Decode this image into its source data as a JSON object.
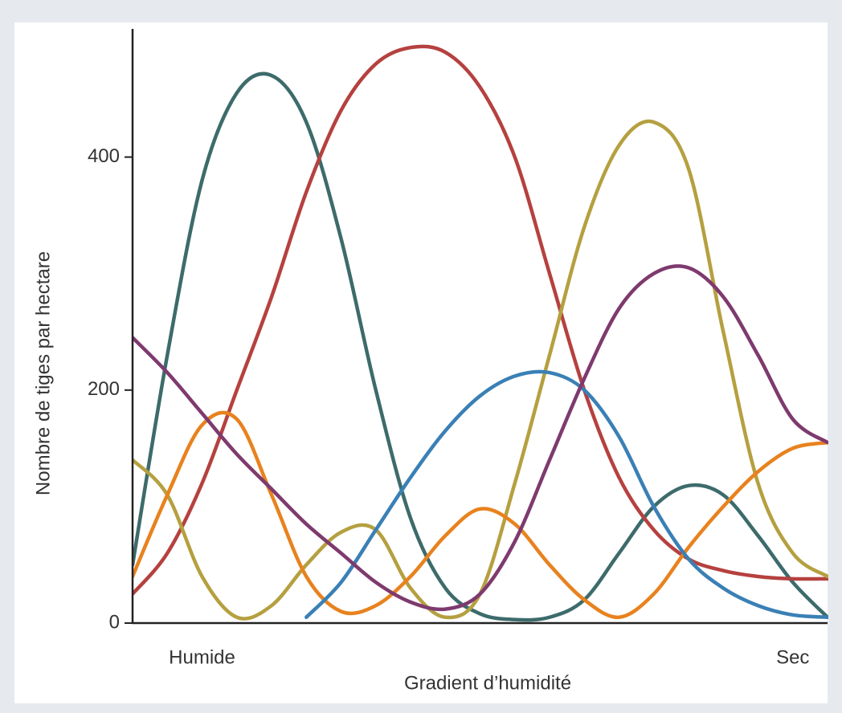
{
  "chart_data": {
    "type": "line",
    "xlabel": "Gradient d’humidité",
    "ylabel": "Nombre de tiges par hectare",
    "categories": [
      null,
      null,
      "Humide",
      null,
      null,
      null,
      null,
      null,
      null,
      null,
      null,
      null,
      null,
      null,
      null,
      null,
      null,
      null,
      null,
      "Sec",
      null
    ],
    "ylim": [
      0,
      510
    ],
    "yticks": [
      0,
      200,
      400
    ],
    "series": [
      {
        "color": "#3d6b6b",
        "values": [
          50,
          230,
          380,
          455,
          470,
          430,
          330,
          200,
          90,
          30,
          8,
          3,
          5,
          20,
          60,
          100,
          118,
          110,
          75,
          35,
          5
        ]
      },
      {
        "color": "#b5413f",
        "values": [
          25,
          60,
          120,
          200,
          280,
          370,
          440,
          480,
          494,
          490,
          460,
          400,
          300,
          200,
          125,
          80,
          55,
          45,
          40,
          38,
          38
        ]
      },
      {
        "color": "#b5a040",
        "values": [
          140,
          110,
          40,
          5,
          15,
          50,
          78,
          80,
          30,
          5,
          25,
          120,
          230,
          340,
          410,
          430,
          390,
          250,
          120,
          60,
          40
        ]
      },
      {
        "color": "#e8821e",
        "values": [
          40,
          110,
          170,
          175,
          110,
          40,
          10,
          15,
          40,
          75,
          98,
          85,
          50,
          20,
          5,
          25,
          65,
          100,
          130,
          150,
          155
        ]
      },
      {
        "color": "#3a80b5",
        "values": [
          null,
          null,
          null,
          null,
          null,
          5,
          35,
          80,
          125,
          165,
          195,
          212,
          215,
          200,
          160,
          100,
          55,
          30,
          15,
          7,
          5
        ]
      },
      {
        "color": "#7e3a6e",
        "values": [
          245,
          215,
          180,
          145,
          115,
          85,
          60,
          35,
          18,
          12,
          25,
          70,
          140,
          210,
          270,
          300,
          305,
          280,
          230,
          175,
          155
        ]
      }
    ]
  }
}
